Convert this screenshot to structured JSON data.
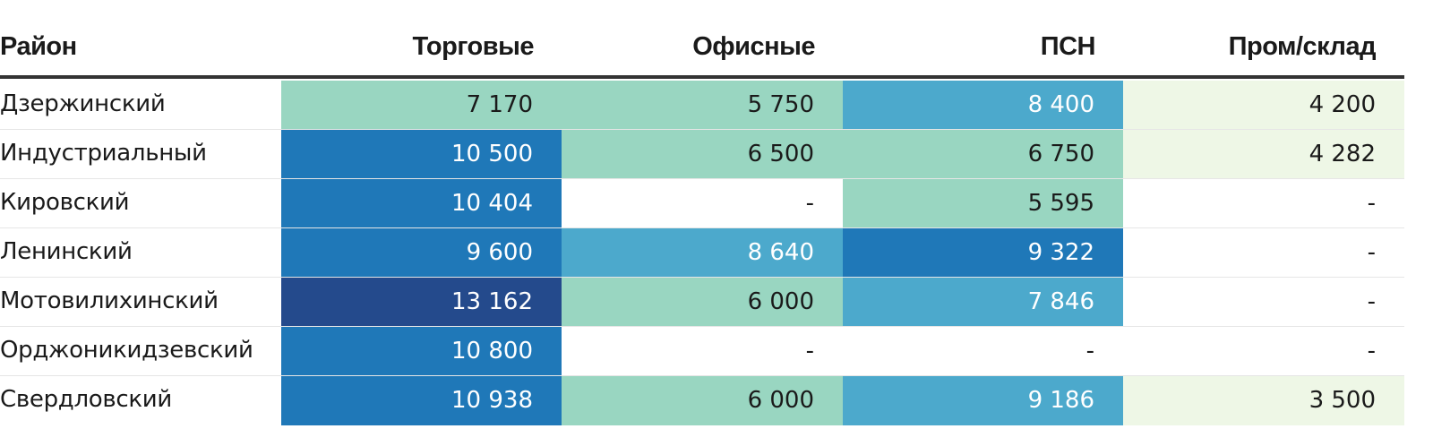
{
  "chart_data": {
    "type": "table",
    "columns": [
      "Район",
      "Торговые",
      "Офисные",
      "ПСН",
      "Пром/склад"
    ],
    "rows": [
      {
        "name": "Дзержинский",
        "values": [
          "7 170",
          "5 750",
          "8 400",
          "4 200"
        ],
        "levels": [
          1,
          1,
          2,
          0
        ]
      },
      {
        "name": "Индустриальный",
        "values": [
          "10 500",
          "6 500",
          "6 750",
          "4 282"
        ],
        "levels": [
          3,
          1,
          1,
          0
        ]
      },
      {
        "name": "Кировский",
        "values": [
          "10 404",
          "-",
          "5 595",
          "-"
        ],
        "levels": [
          3,
          -1,
          1,
          -1
        ]
      },
      {
        "name": "Ленинский",
        "values": [
          "9 600",
          "8 640",
          "9 322",
          "-"
        ],
        "levels": [
          3,
          2,
          3,
          -1
        ]
      },
      {
        "name": "Мотовилихинский",
        "values": [
          "13 162",
          "6 000",
          "7 846",
          "-"
        ],
        "levels": [
          4,
          1,
          2,
          -1
        ]
      },
      {
        "name": "Орджоникидзевский",
        "values": [
          "10 800",
          "-",
          "-",
          "-"
        ],
        "levels": [
          3,
          -1,
          -1,
          -1
        ]
      },
      {
        "name": "Свердловский",
        "values": [
          "10 938",
          "6 000",
          "9 186",
          "3 500"
        ],
        "levels": [
          3,
          1,
          2,
          0
        ]
      }
    ],
    "colors": {
      "empty": "#ffffff",
      "level0": "#eef7e6",
      "level1": "#99d6c1",
      "level2": "#4ca9cc",
      "level3": "#1f78b8",
      "level4": "#244a8c"
    },
    "text_colors": {
      "dark": "#1a1a1a",
      "light": "#ffffff"
    }
  }
}
